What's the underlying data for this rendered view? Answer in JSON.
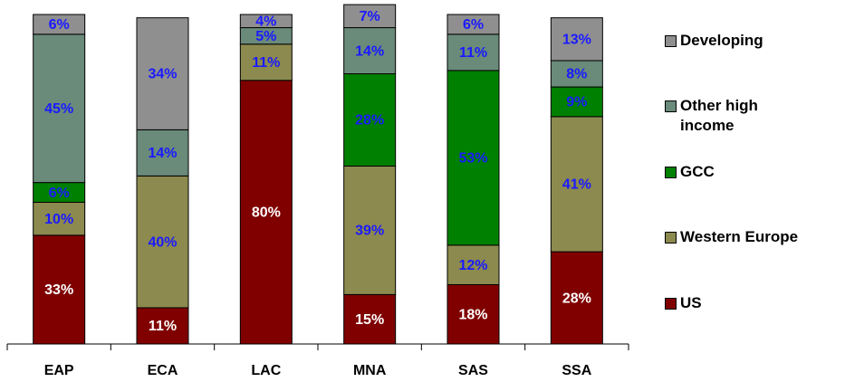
{
  "chart_data": {
    "type": "stacked_bar",
    "categories": [
      "EAP",
      "ECA",
      "LAC",
      "MNA",
      "SAS",
      "SSA"
    ],
    "ylim": [
      0,
      100
    ],
    "legend": "right",
    "series": [
      {
        "name": "US",
        "color": "#800000",
        "label_color": "#ffffff",
        "values": [
          33,
          11,
          80,
          15,
          18,
          28
        ],
        "value_labels": [
          "33%",
          "11%",
          "80%",
          "15%",
          "18%",
          "28%"
        ]
      },
      {
        "name": "Western Europe",
        "color": "#8c8a4e",
        "label_color": "#1a1aff",
        "values": [
          10,
          40,
          11,
          39,
          12,
          41
        ],
        "value_labels": [
          "10%",
          "40%",
          "11%",
          "39%",
          "12%",
          "41%"
        ]
      },
      {
        "name": "GCC",
        "color": "#008000",
        "label_color": "#1a1aff",
        "values": [
          6,
          null,
          null,
          28,
          53,
          9
        ],
        "value_labels": [
          "6%",
          null,
          null,
          "28%",
          "53%",
          "9%"
        ]
      },
      {
        "name": "Other high income",
        "color": "#6a8a7a",
        "label_color": "#1a1aff",
        "values": [
          45,
          14,
          5,
          14,
          11,
          8
        ],
        "value_labels": [
          "45%",
          "14%",
          "5%",
          "14%",
          "11%",
          "8%"
        ]
      },
      {
        "name": "Developing",
        "color": "#8f8f8f",
        "label_color": "#1a1aff",
        "values": [
          6,
          34,
          4,
          7,
          6,
          13
        ],
        "value_labels": [
          "6%",
          "34%",
          "4%",
          "7%",
          "6%",
          "13%"
        ]
      }
    ]
  }
}
